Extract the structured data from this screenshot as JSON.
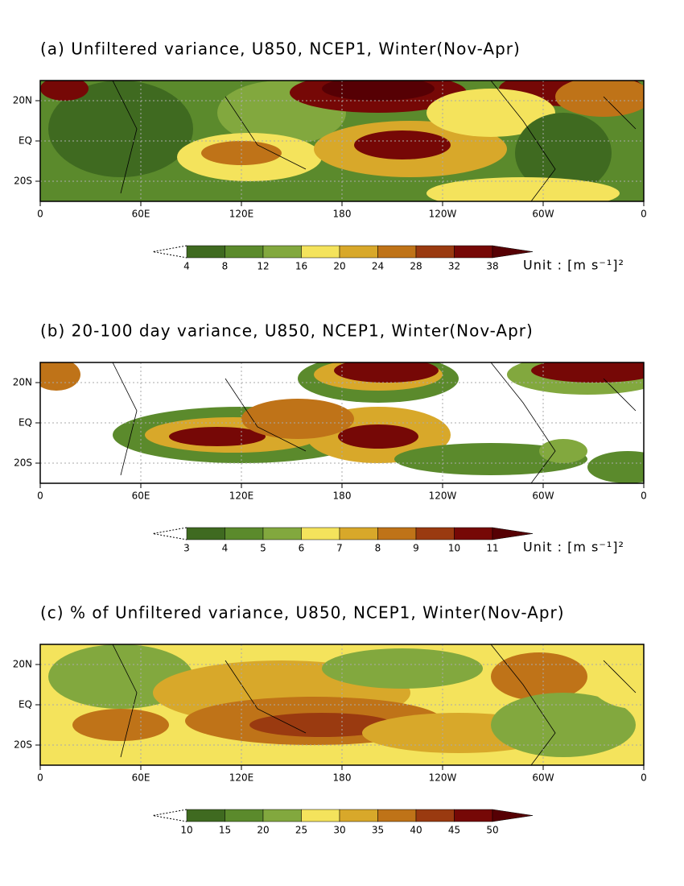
{
  "panels": [
    {
      "title": "(a) Unfiltered variance, U850, NCEP1, Winter(Nov-Apr)",
      "levels": [
        4,
        8,
        12,
        16,
        20,
        24,
        28,
        32,
        38
      ],
      "unit": "Unit : [m s⁻¹]²"
    },
    {
      "title": "(b) 20-100 day variance, U850, NCEP1, Winter(Nov-Apr)",
      "levels": [
        3,
        4,
        5,
        6,
        7,
        8,
        9,
        10,
        11
      ],
      "unit": "Unit : [m s⁻¹]²"
    },
    {
      "title": "(c) % of Unfiltered variance, U850, NCEP1, Winter(Nov-Apr)",
      "levels": [
        10,
        15,
        20,
        25,
        30,
        35,
        40,
        45,
        50
      ]
    }
  ],
  "lat_labels": [
    "20N",
    "EQ",
    "20S"
  ],
  "lon_labels": [
    "0",
    "60E",
    "120E",
    "180",
    "120W",
    "60W",
    "0"
  ],
  "colors": [
    "#3f6a20",
    "#5b8a2c",
    "#82a83e",
    "#f4e35c",
    "#d8a82a",
    "#bf7318",
    "#9a3a10",
    "#760806",
    "#560004"
  ]
}
